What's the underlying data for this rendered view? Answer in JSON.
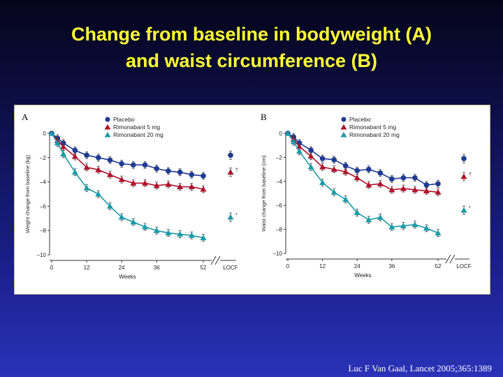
{
  "slide": {
    "title_line1": "Change from baseline in bodyweight (A)",
    "title_line2": "and waist circumference (B)",
    "citation": "Luc F Van Gaal, Lancet 2005;365:1389"
  },
  "colors": {
    "placebo": "#1f3a93",
    "rimonabant_5mg": "#b0102a",
    "rimonabant_20mg": "#1a9aa8"
  },
  "chart_data": [
    {
      "type": "line",
      "panel_label": "A",
      "xlabel": "Weeks",
      "ylabel": "Weight change from baseline (kg)",
      "xlim": [
        0,
        52
      ],
      "ylim": [
        -10,
        0
      ],
      "xticks": [
        "0",
        "12",
        "24",
        "36",
        "52"
      ],
      "yticks": [
        "0",
        "–2",
        "–4",
        "–6",
        "–8",
        "–10"
      ],
      "locf_label": "LOCF",
      "legend_position": "top",
      "x": [
        0,
        2,
        4,
        8,
        12,
        16,
        20,
        24,
        28,
        32,
        36,
        40,
        44,
        48,
        52
      ],
      "series": [
        {
          "name": "Placebo",
          "marker": "circle",
          "color": "#1f3a93",
          "values": [
            0,
            -0.4,
            -0.8,
            -1.4,
            -1.8,
            -2.0,
            -2.2,
            -2.5,
            -2.6,
            -2.6,
            -2.9,
            -3.1,
            -3.2,
            -3.4,
            -3.5
          ],
          "locf": -1.8,
          "locf_note": ""
        },
        {
          "name": "Rimonabant 5 mg",
          "marker": "triangle",
          "color": "#b0102a",
          "values": [
            0,
            -0.6,
            -1.1,
            -1.9,
            -2.8,
            -3.0,
            -3.4,
            -3.8,
            -4.1,
            -4.1,
            -4.3,
            -4.2,
            -4.4,
            -4.4,
            -4.6
          ],
          "locf": -3.2,
          "locf_note": "†"
        },
        {
          "name": "Rimonabant 20 mg",
          "marker": "triangle",
          "color": "#1a9aa8",
          "values": [
            0,
            -0.8,
            -1.7,
            -3.2,
            -4.5,
            -5.0,
            -6.0,
            -6.9,
            -7.3,
            -7.7,
            -8.0,
            -8.2,
            -8.3,
            -8.4,
            -8.6
          ],
          "locf": -6.9,
          "locf_note": "*"
        }
      ]
    },
    {
      "type": "line",
      "panel_label": "B",
      "xlabel": "Weeks",
      "ylabel": "Waist change from baseline (cm)",
      "xlim": [
        0,
        52
      ],
      "ylim": [
        -10,
        0
      ],
      "xticks": [
        "0",
        "12",
        "24",
        "36",
        "52"
      ],
      "yticks": [
        "0",
        "–2",
        "–4",
        "–6",
        "–8",
        "–10"
      ],
      "locf_label": "LOCF",
      "legend_position": "top",
      "x": [
        0,
        2,
        4,
        8,
        12,
        16,
        20,
        24,
        28,
        32,
        36,
        40,
        44,
        48,
        52
      ],
      "series": [
        {
          "name": "Placebo",
          "marker": "circle",
          "color": "#1f3a93",
          "values": [
            0,
            -0.3,
            -0.8,
            -1.4,
            -2.1,
            -2.2,
            -2.7,
            -3.1,
            -3.0,
            -3.3,
            -3.8,
            -3.7,
            -3.7,
            -4.3,
            -4.2
          ],
          "locf": -2.1,
          "locf_note": ""
        },
        {
          "name": "Rimonabant 5 mg",
          "marker": "triangle",
          "color": "#b0102a",
          "values": [
            0,
            -0.5,
            -1.1,
            -1.9,
            -2.8,
            -3.0,
            -3.2,
            -3.7,
            -4.3,
            -4.2,
            -4.7,
            -4.6,
            -4.7,
            -4.8,
            -4.9
          ],
          "locf": -3.6,
          "locf_note": "†"
        },
        {
          "name": "Rimonabant 20 mg",
          "marker": "triangle",
          "color": "#1a9aa8",
          "values": [
            0,
            -0.7,
            -1.5,
            -2.8,
            -4.1,
            -4.9,
            -5.5,
            -6.6,
            -7.2,
            -7.0,
            -7.8,
            -7.7,
            -7.6,
            -7.9,
            -8.3
          ],
          "locf": -6.4,
          "locf_note": "*"
        }
      ]
    }
  ]
}
